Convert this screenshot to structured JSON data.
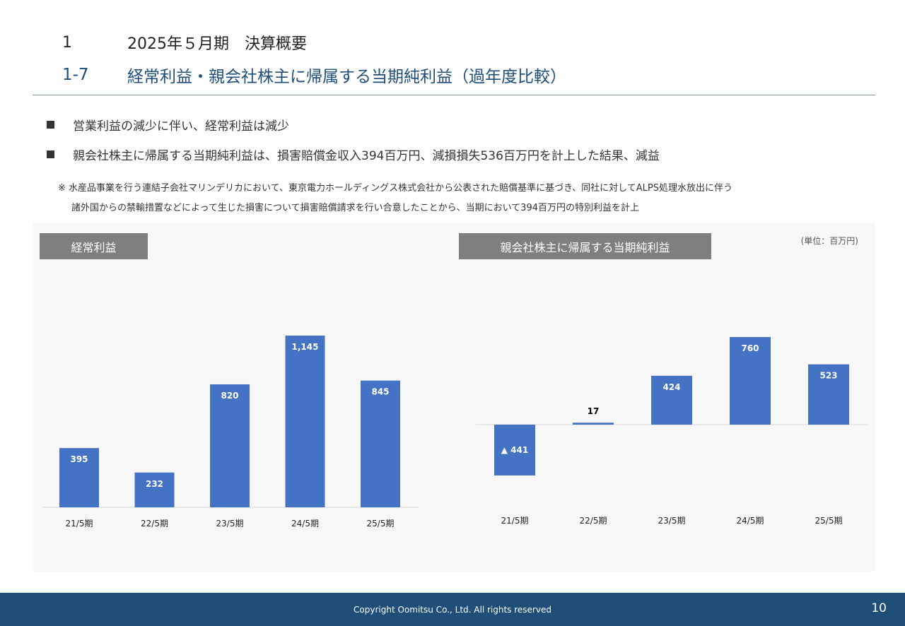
{
  "header": {
    "section_num": "1",
    "section_title": "2025年５月期　決算概要",
    "sub_num": "1-7",
    "sub_title": "経常利益・親会社株主に帰属する当期純利益（過年度比較）"
  },
  "bullets": [
    "営業利益の減少に伴い、経常利益は減少",
    "親会社株主に帰属する当期純利益は、損害賠償金収入394百万円、減損損失536百万円を計上した結果、減益"
  ],
  "note": {
    "line1": "※ 水産品事業を行う連結子会社マリンデリカにおいて、東京電力ホールディングス株式会社から公表された賠償基準に基づき、同社に対してALPS処理水放出に伴う",
    "line2": "諸外国からの禁輸措置などによって生じた損害について損害賠償請求を行い合意したことから、当期において394百万円の特別利益を計上"
  },
  "unit_label": "(単位：百万円)",
  "chart_data": [
    {
      "type": "bar",
      "title": "経常利益",
      "categories": [
        "21/5期",
        "22/5期",
        "23/5期",
        "24/5期",
        "25/5期"
      ],
      "values": [
        395,
        232,
        820,
        1145,
        845
      ],
      "labels": [
        "395",
        "232",
        "820",
        "1,145",
        "845"
      ],
      "ylim": [
        0,
        1145
      ],
      "bar_color": "#4472c4",
      "grid": false
    },
    {
      "type": "bar",
      "title": "親会社株主に帰属する当期純利益",
      "categories": [
        "21/5期",
        "22/5期",
        "23/5期",
        "24/5期",
        "25/5期"
      ],
      "values": [
        -441,
        17,
        424,
        760,
        523
      ],
      "labels": [
        "▲ 441",
        "17",
        "424",
        "760",
        "523"
      ],
      "ylim": [
        -441,
        760
      ],
      "bar_color": "#4472c4",
      "grid": false
    }
  ],
  "footer": {
    "copyright": "Copyright Oomitsu Co., Ltd. All rights reserved",
    "page": "10"
  }
}
